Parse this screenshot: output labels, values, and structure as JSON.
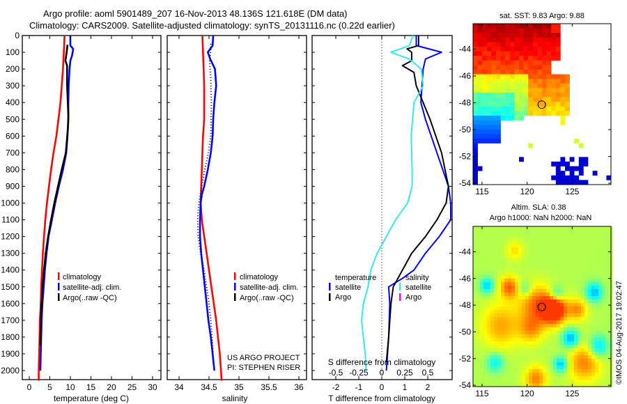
{
  "header": {
    "line1": "Argo profile: aoml 5901489_207 16-Nov-2013 48.136S 121.618E (DM data)",
    "line2": "Climatology: CARS2009. Satellite-adjusted climatology: synTS_20131116.nc (0.22d earlier)"
  },
  "colors": {
    "climatology": "#ff0000",
    "satellite": "#0000ff",
    "argo": "#000000",
    "salinity_satellite": "#33e8f0",
    "salinity_argo": "#ff00ff"
  },
  "chart_data": [
    {
      "type": "line",
      "id": "temperature-profile",
      "xlabel": "temperature (deg C)",
      "ylabel": "",
      "xlim": [
        -2,
        32
      ],
      "ylim": [
        2060,
        0
      ],
      "xticks": [
        0,
        5,
        10,
        15,
        20,
        25,
        30
      ],
      "yticks": [
        0,
        100,
        200,
        300,
        400,
        500,
        600,
        700,
        800,
        900,
        1000,
        1100,
        1200,
        1300,
        1400,
        1500,
        1600,
        1700,
        1800,
        1900,
        2000
      ],
      "legend": {
        "position": "middle-left",
        "entries": [
          "climatology",
          "satellite-adj. clim.",
          "Argo(..raw -QC)"
        ]
      },
      "series": [
        {
          "name": "climatology",
          "color": "#ff0000",
          "style": "solid",
          "points": [
            [
              8.6,
              0
            ],
            [
              8.4,
              100
            ],
            [
              8.2,
              200
            ],
            [
              7.9,
              300
            ],
            [
              7.6,
              400
            ],
            [
              7.1,
              500
            ],
            [
              6.6,
              600
            ],
            [
              5.9,
              700
            ],
            [
              5.3,
              800
            ],
            [
              4.8,
              900
            ],
            [
              4.3,
              1000
            ],
            [
              3.9,
              1100
            ],
            [
              3.6,
              1200
            ],
            [
              3.3,
              1300
            ],
            [
              3.1,
              1400
            ],
            [
              2.9,
              1500
            ],
            [
              2.8,
              1600
            ],
            [
              2.6,
              1700
            ],
            [
              2.5,
              1800
            ],
            [
              2.4,
              1900
            ],
            [
              2.3,
              2000
            ],
            [
              2.3,
              2060
            ]
          ]
        },
        {
          "name": "satellite-adj. clim.",
          "color": "#0000ff",
          "style": "solid",
          "points": [
            [
              10.0,
              0
            ],
            [
              10.0,
              60
            ],
            [
              10.7,
              80
            ],
            [
              10.4,
              120
            ],
            [
              10.0,
              150
            ],
            [
              9.8,
              200
            ],
            [
              9.6,
              300
            ],
            [
              9.5,
              400
            ],
            [
              9.5,
              500
            ],
            [
              9.3,
              600
            ],
            [
              9.0,
              700
            ],
            [
              8.2,
              800
            ],
            [
              7.2,
              900
            ],
            [
              6.3,
              1000
            ],
            [
              5.5,
              1100
            ],
            [
              4.7,
              1200
            ],
            [
              4.2,
              1300
            ],
            [
              3.8,
              1400
            ],
            [
              3.5,
              1500
            ],
            [
              3.2,
              1600
            ],
            [
              3.0,
              1700
            ],
            [
              2.9,
              1800
            ],
            [
              2.8,
              1900
            ],
            [
              2.7,
              2000
            ]
          ]
        },
        {
          "name": "Argo(..raw -QC)",
          "color": "#000000",
          "style": "solid",
          "points": [
            [
              9.3,
              55
            ],
            [
              9.1,
              100
            ],
            [
              8.8,
              150
            ],
            [
              9.2,
              180
            ],
            [
              9.2,
              300
            ],
            [
              9.5,
              480
            ],
            [
              9.4,
              550
            ],
            [
              8.9,
              700
            ],
            [
              7.9,
              800
            ],
            [
              7.0,
              900
            ],
            [
              6.1,
              1000
            ],
            [
              5.3,
              1100
            ],
            [
              4.6,
              1200
            ],
            [
              4.0,
              1300
            ],
            [
              3.6,
              1400
            ],
            [
              3.2,
              1500
            ],
            [
              3.0,
              1600
            ],
            [
              2.8,
              1700
            ],
            [
              2.7,
              1850
            ]
          ]
        }
      ]
    },
    {
      "type": "line",
      "id": "salinity-profile",
      "xlabel": "salinity",
      "xlim": [
        33.8,
        36.1
      ],
      "ylim": [
        2060,
        0
      ],
      "xticks": [
        34,
        34.5,
        35,
        35.5,
        36
      ],
      "legend": {
        "position": "bottom-right",
        "entries": [
          "climatology",
          "satellite-adj. clim.",
          "Argo(..raw -QC)"
        ]
      },
      "annotations": [
        "US ARGO PROJECT",
        "PI: STEPHEN RISER"
      ],
      "series": [
        {
          "name": "climatology",
          "color": "#ff0000",
          "style": "solid",
          "points": [
            [
              34.39,
              0
            ],
            [
              34.4,
              100
            ],
            [
              34.41,
              200
            ],
            [
              34.42,
              300
            ],
            [
              34.42,
              400
            ],
            [
              34.42,
              500
            ],
            [
              34.4,
              600
            ],
            [
              34.39,
              700
            ],
            [
              34.38,
              800
            ],
            [
              34.37,
              900
            ],
            [
              34.36,
              1000
            ],
            [
              34.38,
              1100
            ],
            [
              34.42,
              1200
            ],
            [
              34.46,
              1300
            ],
            [
              34.5,
              1400
            ],
            [
              34.54,
              1500
            ],
            [
              34.58,
              1600
            ],
            [
              34.62,
              1700
            ],
            [
              34.65,
              1800
            ],
            [
              34.68,
              1900
            ],
            [
              34.7,
              2000
            ],
            [
              34.71,
              2060
            ]
          ]
        },
        {
          "name": "satellite-adj. clim.",
          "color": "#0000ff",
          "style": "solid",
          "points": [
            [
              34.57,
              0
            ],
            [
              34.56,
              60
            ],
            [
              34.48,
              100
            ],
            [
              34.52,
              140
            ],
            [
              34.6,
              200
            ],
            [
              34.62,
              300
            ],
            [
              34.59,
              400
            ],
            [
              34.57,
              500
            ],
            [
              34.56,
              600
            ],
            [
              34.53,
              700
            ],
            [
              34.48,
              800
            ],
            [
              34.42,
              900
            ],
            [
              34.38,
              950
            ],
            [
              34.36,
              1000
            ],
            [
              34.35,
              1100
            ],
            [
              34.35,
              1200
            ],
            [
              34.37,
              1300
            ],
            [
              34.4,
              1400
            ],
            [
              34.43,
              1500
            ],
            [
              34.46,
              1600
            ],
            [
              34.49,
              1700
            ],
            [
              34.53,
              1800
            ],
            [
              34.56,
              1900
            ],
            [
              34.59,
              2000
            ]
          ]
        },
        {
          "name": "Argo(..raw -QC)",
          "color": "#000000",
          "style": "dotted",
          "points": [
            [
              34.53,
              50
            ],
            [
              34.53,
              80
            ],
            [
              34.51,
              150
            ],
            [
              34.53,
              250
            ],
            [
              34.54,
              400
            ],
            [
              34.53,
              600
            ],
            [
              34.49,
              700
            ],
            [
              34.43,
              800
            ],
            [
              34.38,
              900
            ],
            [
              34.33,
              1000
            ],
            [
              34.31,
              1100
            ],
            [
              34.32,
              1200
            ],
            [
              34.36,
              1300
            ],
            [
              34.42,
              1400
            ],
            [
              34.46,
              1500
            ],
            [
              34.5,
              1600
            ],
            [
              34.53,
              1700
            ],
            [
              34.55,
              1800
            ],
            [
              34.57,
              1900
            ]
          ]
        }
      ]
    },
    {
      "type": "line",
      "id": "difference-profile",
      "xlabel": "T difference from climatology",
      "xlabel_top": "S difference from climatology",
      "xlim": [
        -3,
        3
      ],
      "ylim": [
        2060,
        0
      ],
      "xticks": [
        -2,
        -1,
        0,
        1,
        2
      ],
      "xticks_s": [
        "-0.5",
        "-0.25",
        "0",
        "0.25",
        "0.5"
      ],
      "legend": {
        "position": "bottom-center",
        "headers": [
          "temperature",
          "salinity"
        ],
        "entries": [
          "satellite",
          "Argo",
          "satellite",
          "Argo"
        ]
      },
      "series": [
        {
          "name": "temperature satellite",
          "color": "#0000ff",
          "points": [
            [
              1.5,
              0
            ],
            [
              1.5,
              60
            ],
            [
              2.6,
              100
            ],
            [
              1.9,
              140
            ],
            [
              1.8,
              200
            ],
            [
              1.7,
              400
            ],
            [
              1.9,
              500
            ],
            [
              2.4,
              700
            ],
            [
              2.9,
              900
            ],
            [
              3.0,
              1000
            ],
            [
              3.0,
              1100
            ],
            [
              2.5,
              1200
            ],
            [
              1.9,
              1300
            ],
            [
              1.4,
              1400
            ],
            [
              0.9,
              1450
            ],
            [
              0.3,
              1500
            ],
            [
              0.35,
              1600
            ],
            [
              0.3,
              1800
            ],
            [
              0.2,
              2000
            ]
          ]
        },
        {
          "name": "temperature Argo",
          "color": "#000000",
          "points": [
            [
              1.6,
              0
            ],
            [
              1.6,
              60
            ],
            [
              1.1,
              80
            ],
            [
              1.3,
              100
            ],
            [
              1.3,
              150
            ],
            [
              0.9,
              180
            ],
            [
              1.4,
              220
            ],
            [
              1.5,
              300
            ],
            [
              1.8,
              400
            ],
            [
              2.1,
              500
            ],
            [
              2.6,
              700
            ],
            [
              2.9,
              900
            ],
            [
              2.8,
              1000
            ],
            [
              2.4,
              1100
            ],
            [
              1.9,
              1200
            ],
            [
              1.3,
              1300
            ],
            [
              0.9,
              1400
            ],
            [
              0.5,
              1500
            ],
            [
              0.4,
              1600
            ],
            [
              0.3,
              1800
            ],
            [
              0.2,
              1950
            ]
          ]
        },
        {
          "name": "salinity satellite",
          "color": "#33e8f0",
          "points": [
            [
              0.34,
              0
            ],
            [
              0.3,
              60
            ],
            [
              0.1,
              100
            ],
            [
              0.3,
              140
            ],
            [
              0.43,
              200
            ],
            [
              0.45,
              300
            ],
            [
              0.35,
              400
            ],
            [
              0.32,
              600
            ],
            [
              0.33,
              800
            ],
            [
              0.33,
              900
            ],
            [
              0.28,
              1000
            ],
            [
              0.15,
              1100
            ],
            [
              0.05,
              1200
            ],
            [
              -0.05,
              1300
            ],
            [
              -0.12,
              1400
            ],
            [
              -0.15,
              1500
            ],
            [
              -0.2,
              1600
            ],
            [
              -0.22,
              1700
            ],
            [
              -0.2,
              1800
            ],
            [
              -0.18,
              1900
            ],
            [
              -0.17,
              2000
            ]
          ]
        }
      ]
    }
  ],
  "maps": {
    "sst": {
      "title": "sat. SST: 9.83 Argo: 9.88",
      "xticks": [
        "115",
        "120",
        "125"
      ],
      "yticks": [
        "-44",
        "-46",
        "-48",
        "-50",
        "-52",
        "-54"
      ],
      "xlim": [
        114,
        129.3
      ],
      "ylim": [
        -54.1,
        -42.1
      ],
      "argo_position": {
        "lon": 121.618,
        "lat": -48.136
      }
    },
    "sla": {
      "title_line1": "Altim. SLA: 0.38",
      "title_line2": "Argo h1000: NaN h2000: NaN",
      "xticks": [
        "115",
        "120",
        "125"
      ],
      "yticks": [
        "-44",
        "-46",
        "-48",
        "-50",
        "-52",
        "-54"
      ],
      "xlim": [
        114,
        129.3
      ],
      "ylim": [
        -54.1,
        -42.1
      ],
      "argo_position": {
        "lon": 121.618,
        "lat": -48.136
      }
    }
  },
  "credit": "©IMOS 04-Aug-2017 19:02:47"
}
